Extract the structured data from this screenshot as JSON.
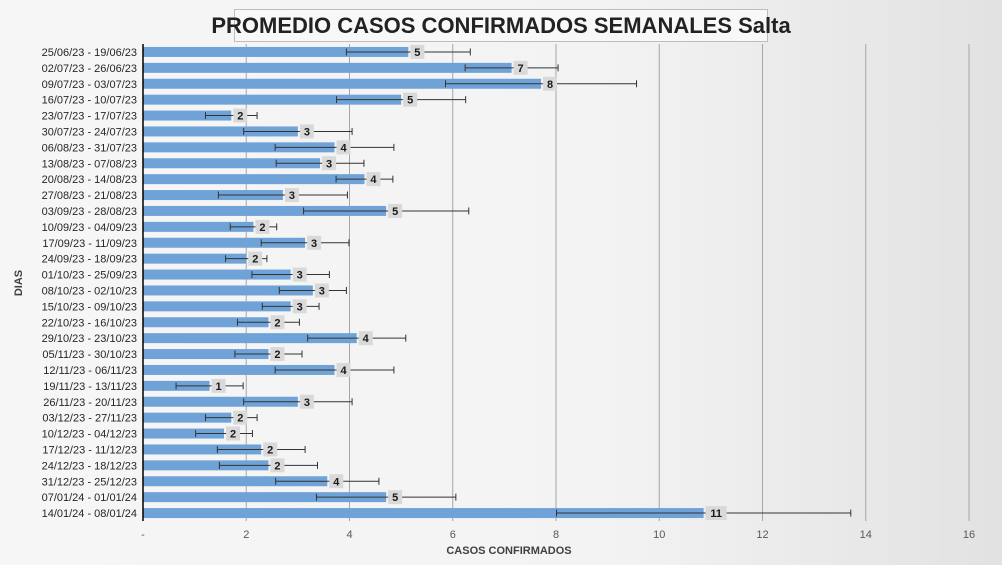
{
  "chart_data": {
    "type": "bar",
    "orientation": "horizontal",
    "title": "PROMEDIO CASOS CONFIRMADOS SEMANALES Salta",
    "xlabel": "CASOS CONFIRMADOS",
    "ylabel": "DIAS",
    "xlim": [
      0,
      16
    ],
    "xticks": [
      "-",
      "2",
      "4",
      "6",
      "8",
      "10",
      "12",
      "14",
      "16"
    ],
    "grid": true,
    "legend": "none",
    "colors": {
      "bar": "#6fa3d8",
      "error": "#333333",
      "label_bg": "#d9d9d9"
    },
    "categories": [
      "25/06/23 - 19/06/23",
      "02/07/23 - 26/06/23",
      "09/07/23 - 03/07/23",
      "16/07/23 - 10/07/23",
      "23/07/23 - 17/07/23",
      "30/07/23 - 24/07/23",
      "06/08/23 - 31/07/23",
      "13/08/23 - 07/08/23",
      "20/08/23 - 14/08/23",
      "27/08/23 - 21/08/23",
      "03/09/23 - 28/08/23",
      "10/09/23 - 04/09/23",
      "17/09/23 - 11/09/23",
      "24/09/23 - 18/09/23",
      "01/10/23 - 25/09/23",
      "08/10/23 - 02/10/23",
      "15/10/23 - 09/10/23",
      "22/10/23 - 16/10/23",
      "29/10/23 - 23/10/23",
      "05/11/23 - 30/10/23",
      "12/11/23 - 06/11/23",
      "19/11/23 - 13/11/23",
      "26/11/23 - 20/11/23",
      "03/12/23 - 27/11/23",
      "10/12/23 - 04/12/23",
      "17/12/23 - 11/12/23",
      "24/12/23 - 18/12/23",
      "31/12/23 - 25/12/23",
      "07/01/24 - 01/01/24",
      "14/01/24 - 08/01/24"
    ],
    "values": [
      5.14,
      7.14,
      7.71,
      5.0,
      1.71,
      3.0,
      3.71,
      3.43,
      4.29,
      2.71,
      4.71,
      2.14,
      3.14,
      2.0,
      2.86,
      3.29,
      2.86,
      2.43,
      4.14,
      2.43,
      3.71,
      1.29,
      3.0,
      1.71,
      1.57,
      2.29,
      2.43,
      3.57,
      4.71,
      10.86
    ],
    "errors": [
      1.2,
      0.9,
      1.85,
      1.25,
      0.5,
      1.05,
      1.15,
      0.85,
      0.55,
      1.25,
      1.6,
      0.45,
      0.85,
      0.4,
      0.75,
      0.65,
      0.55,
      0.6,
      0.95,
      0.65,
      1.15,
      0.65,
      1.05,
      0.5,
      0.55,
      0.85,
      0.95,
      1.0,
      1.35,
      2.85
    ],
    "data_labels": [
      "5",
      "7",
      "8",
      "5",
      "2",
      "3",
      "4",
      "3",
      "4",
      "3",
      "5",
      "2",
      "3",
      "2",
      "3",
      "3",
      "3",
      "2",
      "4",
      "2",
      "4",
      "1",
      "3",
      "2",
      "2",
      "2",
      "2",
      "4",
      "5",
      "11"
    ]
  }
}
